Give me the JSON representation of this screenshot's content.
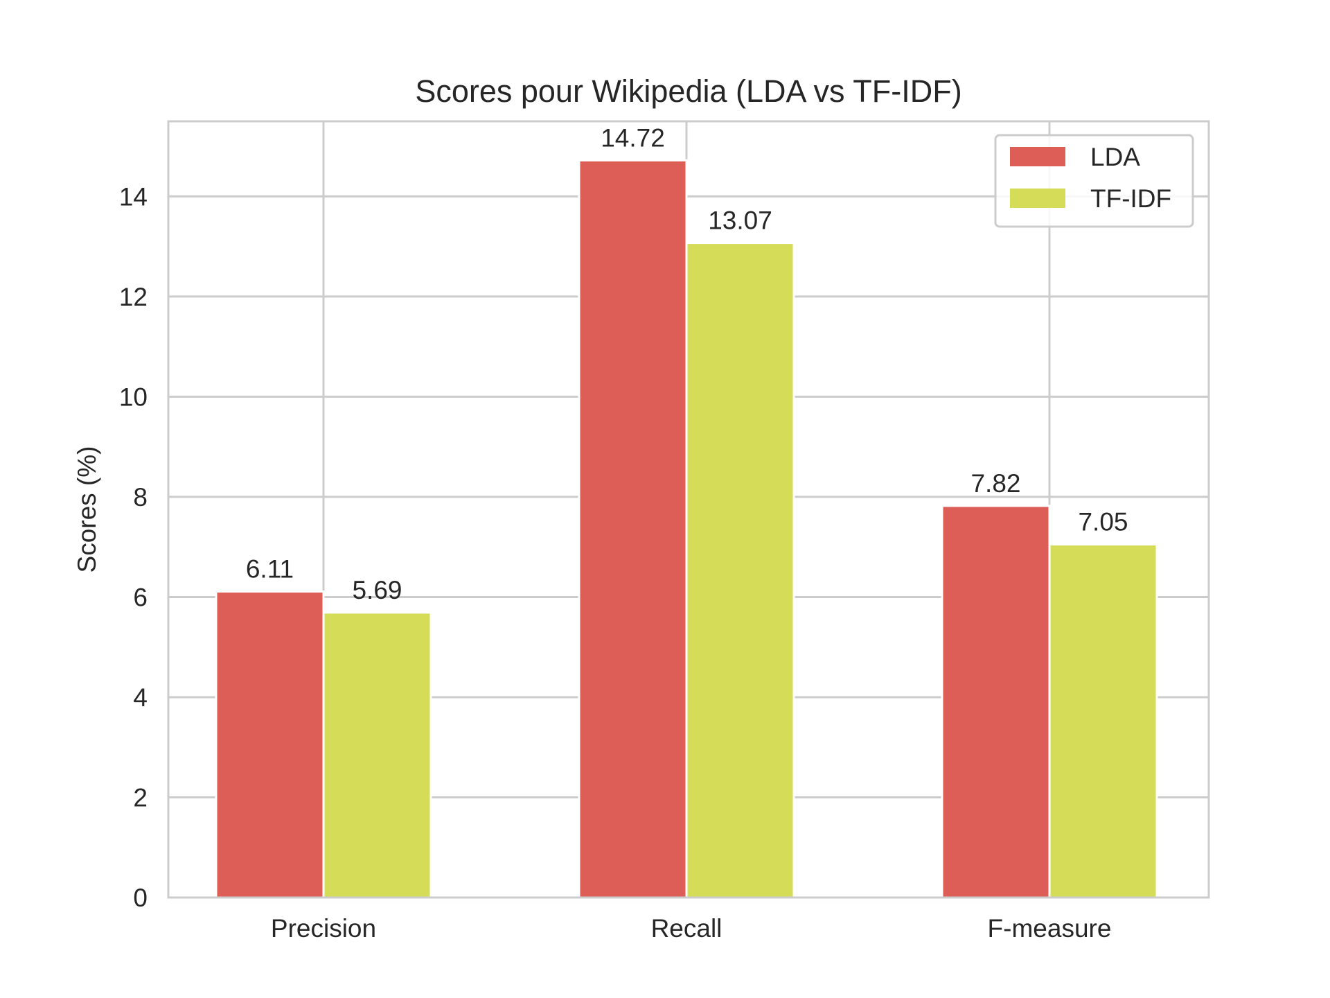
{
  "chart_data": {
    "type": "bar",
    "title": "Scores pour Wikipedia (LDA vs TF-IDF)",
    "xlabel": "",
    "ylabel": "Scores (%)",
    "categories": [
      "Precision",
      "Recall",
      "F-measure"
    ],
    "series": [
      {
        "name": "LDA",
        "values": [
          6.11,
          14.72,
          7.82
        ],
        "color": "#dc5e56"
      },
      {
        "name": "TF-IDF",
        "values": [
          5.69,
          13.07,
          7.05
        ],
        "color": "#d5dc57"
      }
    ],
    "data_labels": [
      [
        "6.11",
        "14.72",
        "7.82"
      ],
      [
        "5.69",
        "13.07",
        "7.05"
      ]
    ],
    "ylim": [
      0,
      15.5
    ],
    "yticks": [
      0,
      2,
      4,
      6,
      8,
      10,
      12,
      14
    ],
    "ytick_labels": [
      "0",
      "2",
      "4",
      "6",
      "8",
      "10",
      "12",
      "14"
    ],
    "grid": true,
    "legend": "top-right",
    "colors": {
      "grid": "#cccccc",
      "axes_edge": "#cccccc",
      "text": "#262626"
    }
  }
}
